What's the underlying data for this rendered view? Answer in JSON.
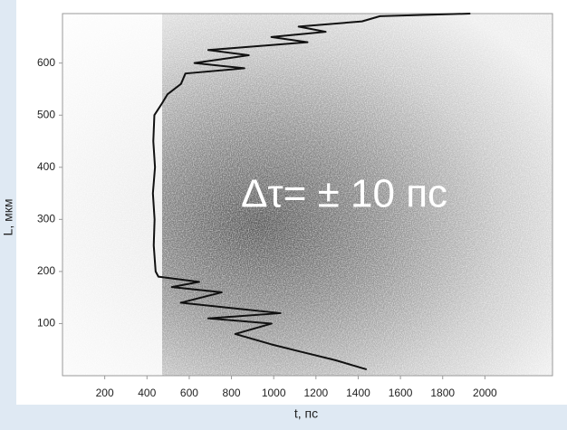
{
  "chart_data": {
    "type": "line",
    "x_label": "t, пс",
    "y_label": "L, мкм",
    "annotation": "Δτ= ± 10 пс",
    "color": "#111111",
    "x": [
      1440,
      1290,
      1118,
      990,
      818,
      990,
      690,
      1032,
      560,
      754,
      518,
      647,
      454,
      441,
      432,
      436,
      428,
      438,
      430,
      435,
      467,
      497,
      561,
      582,
      861,
      625,
      882,
      690,
      1160,
      989,
      1246,
      1118,
      1418,
      1503,
      1931
    ],
    "y": [
      12,
      30,
      47,
      60,
      80,
      100,
      110,
      120,
      140,
      160,
      170,
      180,
      190,
      200,
      250,
      300,
      350,
      400,
      450,
      500,
      520,
      540,
      560,
      580,
      590,
      600,
      615,
      625,
      640,
      650,
      660,
      670,
      680,
      690,
      695
    ],
    "xlim": [
      0,
      2320
    ],
    "ylim": [
      0,
      695
    ],
    "xticks": [
      200,
      400,
      600,
      800,
      1000,
      1200,
      1400,
      1600,
      1800,
      2000
    ],
    "yticks": [
      100,
      200,
      300,
      400,
      500,
      600
    ]
  }
}
